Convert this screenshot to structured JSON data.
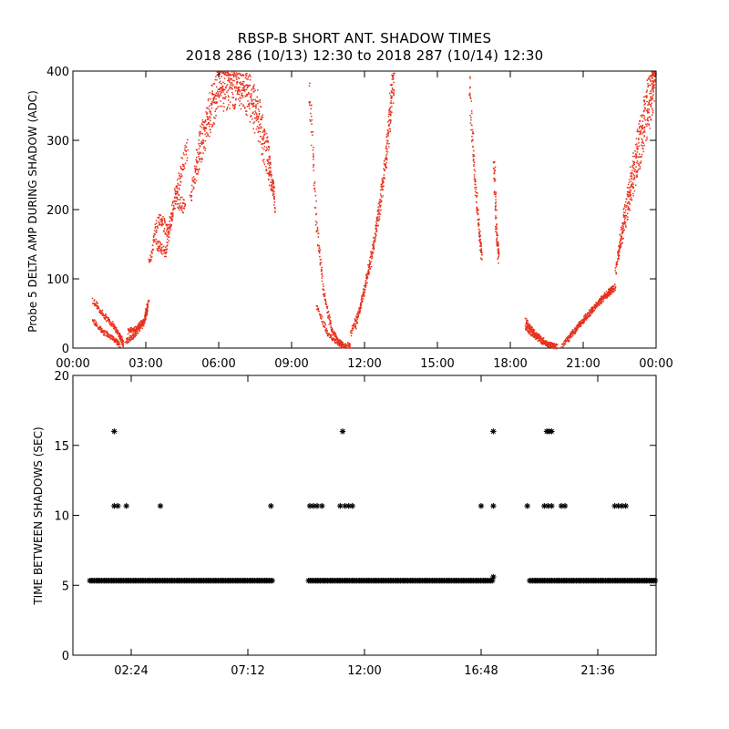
{
  "title": "RBSP-B SHORT ANT. SHADOW TIMES",
  "subtitle": "2018 286 (10/13) 12:30 to 2018 287 (10/14) 12:30",
  "colors": {
    "top_points": "#e8301c",
    "bottom_points": "#000000",
    "axes": "#000000"
  },
  "chart_data": [
    {
      "type": "scatter",
      "ylabel": "Probe 5 DELTA AMP DURING SHADOW (ADC)",
      "xlabel": "",
      "xlim": [
        0,
        24
      ],
      "ylim": [
        0,
        400
      ],
      "xticks": [
        0,
        3,
        6,
        9,
        12,
        15,
        18,
        21,
        24
      ],
      "xtick_labels": [
        "00:00",
        "03:00",
        "06:00",
        "09:00",
        "12:00",
        "15:00",
        "18:00",
        "21:00",
        "00:00"
      ],
      "yticks": [
        0,
        100,
        200,
        300,
        400
      ],
      "ytick_labels": [
        "0",
        "100",
        "200",
        "300",
        "400"
      ],
      "grid": false,
      "marker": "dot",
      "series_trend": [
        {
          "x": [
            0.8,
            1.2,
            1.6,
            1.9,
            2.05
          ],
          "y": [
            70,
            50,
            35,
            20,
            5
          ]
        },
        {
          "x": [
            0.8,
            1.2,
            1.6,
            1.9
          ],
          "y": [
            40,
            25,
            15,
            5
          ]
        },
        {
          "x": [
            2.15,
            2.5,
            2.85,
            3.05
          ],
          "y": [
            10,
            20,
            35,
            55
          ]
        },
        {
          "x": [
            2.25,
            2.6,
            2.9,
            3.1
          ],
          "y": [
            25,
            30,
            40,
            70
          ]
        },
        {
          "x": [
            3.1,
            3.5,
            3.9,
            4.3,
            4.7
          ],
          "y": [
            120,
            190,
            170,
            240,
            290
          ]
        },
        {
          "x": [
            3.4,
            3.8,
            4.2,
            4.6
          ],
          "y": [
            150,
            140,
            220,
            200
          ]
        },
        {
          "x": [
            4.8,
            5.2,
            5.6,
            6.0,
            6.4,
            6.8,
            7.2,
            7.6,
            8.0,
            8.3
          ],
          "y": [
            210,
            300,
            350,
            390,
            400,
            395,
            380,
            350,
            290,
            200
          ]
        },
        {
          "x": [
            5.0,
            5.5,
            6.0,
            6.5,
            7.0,
            7.5,
            8.0,
            8.3
          ],
          "y": [
            250,
            320,
            360,
            370,
            360,
            330,
            260,
            220
          ]
        },
        {
          "x": [
            9.7,
            10.0,
            10.3,
            10.6,
            10.9,
            11.1
          ],
          "y": [
            380,
            180,
            80,
            30,
            10,
            5
          ]
        },
        {
          "x": [
            10.0,
            10.5,
            11.0,
            11.4
          ],
          "y": [
            60,
            20,
            5,
            5
          ]
        },
        {
          "x": [
            11.4,
            11.8,
            12.2,
            12.6,
            13.0,
            13.2
          ],
          "y": [
            20,
            60,
            120,
            200,
            320,
            400
          ]
        },
        {
          "x": [
            11.6,
            12.0,
            12.4,
            12.8,
            13.1
          ],
          "y": [
            30,
            90,
            160,
            260,
            380
          ]
        },
        {
          "x": [
            16.3,
            16.5,
            16.7,
            16.8
          ],
          "y": [
            380,
            250,
            170,
            130
          ]
        },
        {
          "x": [
            17.3,
            17.4,
            17.5
          ],
          "y": [
            280,
            170,
            130
          ]
        },
        {
          "x": [
            18.6,
            18.9,
            19.2,
            19.6,
            19.9
          ],
          "y": [
            40,
            25,
            15,
            5,
            3
          ]
        },
        {
          "x": [
            18.6,
            19.0,
            19.4,
            19.8
          ],
          "y": [
            30,
            18,
            8,
            4
          ]
        },
        {
          "x": [
            20.1,
            20.6,
            21.1,
            21.6,
            22.0,
            22.3
          ],
          "y": [
            5,
            25,
            45,
            65,
            80,
            90
          ]
        },
        {
          "x": [
            20.3,
            20.8,
            21.3,
            21.8,
            22.2
          ],
          "y": [
            10,
            35,
            55,
            75,
            85
          ]
        },
        {
          "x": [
            22.3,
            22.6,
            22.9,
            23.2,
            23.5,
            23.8,
            23.95
          ],
          "y": [
            110,
            180,
            240,
            300,
            350,
            390,
            400
          ]
        },
        {
          "x": [
            22.4,
            22.8,
            23.2,
            23.6,
            23.9
          ],
          "y": [
            130,
            200,
            260,
            320,
            370
          ]
        }
      ]
    },
    {
      "type": "scatter",
      "ylabel": "TIME BETWEEN SHADOWS (SEC)",
      "xlabel": "",
      "xlim": [
        0,
        24
      ],
      "ylim": [
        0,
        20
      ],
      "xticks": [
        2.4,
        7.2,
        12.0,
        16.8,
        21.6
      ],
      "xtick_labels": [
        "02:24",
        "07:12",
        "12:00",
        "16:48",
        "21:36"
      ],
      "yticks": [
        0,
        5,
        10,
        15,
        20
      ],
      "ytick_labels": [
        "0",
        "5",
        "10",
        "15",
        "20"
      ],
      "grid": false,
      "marker": "asterisk",
      "baseline_y": 5.33,
      "baseline_segments": [
        [
          0.7,
          8.2
        ],
        [
          9.7,
          17.3
        ],
        [
          18.8,
          24.0
        ]
      ],
      "points": [
        {
          "x": 1.7,
          "y": 16.0
        },
        {
          "x": 1.7,
          "y": 10.67
        },
        {
          "x": 1.85,
          "y": 10.67
        },
        {
          "x": 2.2,
          "y": 10.67
        },
        {
          "x": 3.6,
          "y": 10.67
        },
        {
          "x": 8.15,
          "y": 10.67
        },
        {
          "x": 9.75,
          "y": 10.67
        },
        {
          "x": 9.9,
          "y": 10.67
        },
        {
          "x": 10.05,
          "y": 10.67
        },
        {
          "x": 10.25,
          "y": 10.67
        },
        {
          "x": 11.0,
          "y": 10.67
        },
        {
          "x": 11.1,
          "y": 16.0
        },
        {
          "x": 11.2,
          "y": 10.67
        },
        {
          "x": 11.35,
          "y": 10.67
        },
        {
          "x": 11.5,
          "y": 10.67
        },
        {
          "x": 16.8,
          "y": 10.67
        },
        {
          "x": 17.3,
          "y": 16.0
        },
        {
          "x": 17.3,
          "y": 10.67
        },
        {
          "x": 17.3,
          "y": 5.6
        },
        {
          "x": 18.7,
          "y": 10.67
        },
        {
          "x": 19.4,
          "y": 10.67
        },
        {
          "x": 19.5,
          "y": 16.0
        },
        {
          "x": 19.6,
          "y": 16.0
        },
        {
          "x": 19.7,
          "y": 16.0
        },
        {
          "x": 19.55,
          "y": 10.67
        },
        {
          "x": 19.7,
          "y": 10.67
        },
        {
          "x": 20.1,
          "y": 10.67
        },
        {
          "x": 20.25,
          "y": 10.67
        },
        {
          "x": 22.3,
          "y": 10.67
        },
        {
          "x": 22.45,
          "y": 10.67
        },
        {
          "x": 22.6,
          "y": 10.67
        },
        {
          "x": 22.75,
          "y": 10.67
        }
      ]
    }
  ]
}
